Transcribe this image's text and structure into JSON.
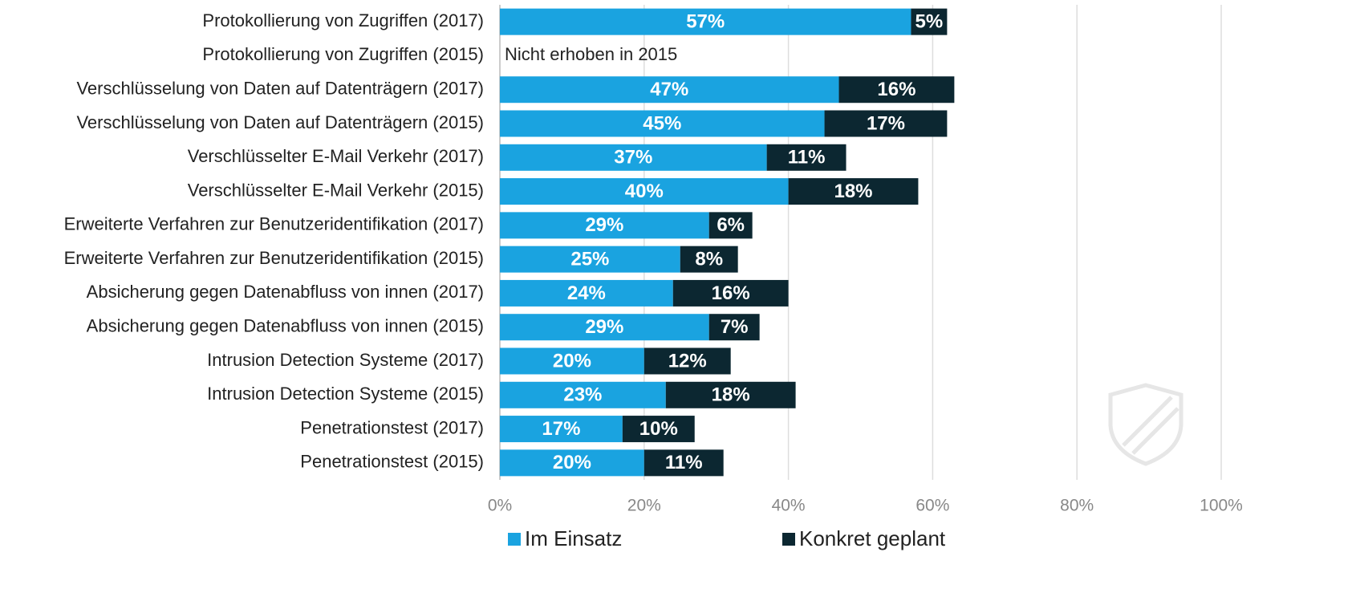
{
  "chart_data": {
    "type": "stacked-barh",
    "categories": [
      "Protokollierung von Zugriffen (2017)",
      "Protokollierung von Zugriffen (2015)",
      "Verschlüsselung von Daten auf Datenträgern (2017)",
      "Verschlüsselung von Daten auf Datenträgern (2015)",
      "Verschlüsselter E-Mail Verkehr (2017)",
      "Verschlüsselter E-Mail Verkehr (2015)",
      "Erweiterte Verfahren zur Benutzeridentifikation (2017)",
      "Erweiterte Verfahren zur Benutzeridentifikation (2015)",
      "Absicherung gegen Datenabfluss von innen (2017)",
      "Absicherung gegen Datenabfluss von innen (2015)",
      "Intrusion Detection Systeme (2017)",
      "Intrusion Detection Systeme (2015)",
      "Penetrationstest (2017)",
      "Penetrationstest (2015)"
    ],
    "series": [
      {
        "name": "Im Einsatz",
        "color": "#1aa3e0",
        "values": [
          57,
          null,
          47,
          45,
          37,
          40,
          29,
          25,
          24,
          29,
          20,
          23,
          17,
          20
        ],
        "value_labels": [
          "57%",
          null,
          "47%",
          "45%",
          "37%",
          "40%",
          "29%",
          "25%",
          "24%",
          "29%",
          "20%",
          "23%",
          "17%",
          "20%"
        ]
      },
      {
        "name": "Konkret geplant",
        "color": "#0c2731",
        "values": [
          5,
          null,
          16,
          17,
          11,
          18,
          6,
          8,
          16,
          7,
          12,
          18,
          10,
          11
        ],
        "value_labels": [
          "5%",
          null,
          "16%",
          "17%",
          "11%",
          "18%",
          "6%",
          "8%",
          "16%",
          "7%",
          "12%",
          "18%",
          "10%",
          "11%"
        ]
      }
    ],
    "annotations": [
      "Nicht erhoben in 2015"
    ],
    "xlim": [
      0,
      100
    ],
    "xticks": [
      {
        "value": 0,
        "label": "0%"
      },
      {
        "value": 20,
        "label": "20%"
      },
      {
        "value": 40,
        "label": "40%"
      },
      {
        "value": 60,
        "label": "60%"
      },
      {
        "value": 80,
        "label": "80%"
      },
      {
        "value": 100,
        "label": "100%"
      }
    ],
    "grid": true,
    "legend": "bottom"
  }
}
